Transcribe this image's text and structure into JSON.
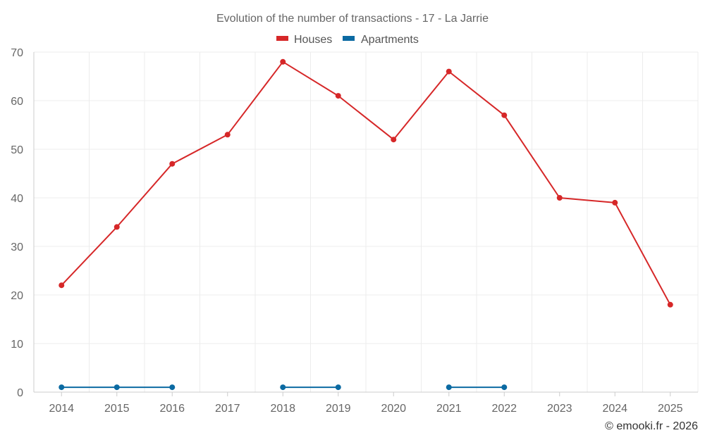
{
  "chart_data": {
    "type": "line",
    "title": "Evolution of the number of transactions - 17 - La Jarrie",
    "xlabel": "",
    "ylabel": "",
    "categories": [
      "2014",
      "2015",
      "2016",
      "2017",
      "2018",
      "2019",
      "2020",
      "2021",
      "2022",
      "2023",
      "2024",
      "2025"
    ],
    "ylim": [
      0,
      70
    ],
    "yticks": [
      0,
      10,
      20,
      30,
      40,
      50,
      60,
      70
    ],
    "grid": true,
    "legend_position": "top-center",
    "series": [
      {
        "name": "Houses",
        "color": "#d62728",
        "values": [
          22,
          34,
          47,
          53,
          68,
          61,
          52,
          66,
          57,
          40,
          39,
          18
        ]
      },
      {
        "name": "Apartments",
        "color": "#0b6aa2",
        "values": [
          1,
          1,
          1,
          null,
          1,
          1,
          null,
          1,
          1,
          null,
          null,
          null
        ]
      }
    ],
    "credit": "© emooki.fr - 2026"
  }
}
